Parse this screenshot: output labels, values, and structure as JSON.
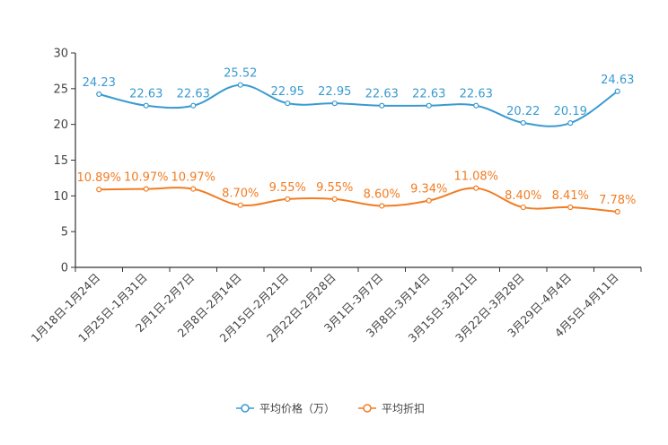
{
  "chart_data": {
    "type": "line",
    "title": "",
    "xlabel": "",
    "ylabel": "",
    "ylim": [
      0,
      30
    ],
    "yticks": [
      0,
      5,
      10,
      15,
      20,
      25,
      30
    ],
    "grid": false,
    "legend_position": "bottom",
    "categories": [
      "1月18日-1月24日",
      "1月25日-1月31日",
      "2月1日-2月7日",
      "2月8日-2月14日",
      "2月15日-2月21日",
      "2月22日-2月28日",
      "3月1日-3月7日",
      "3月8日-3月14日",
      "3月15日-3月21日",
      "3月22日-3月28日",
      "3月29日-4月4日",
      "4月5日-4月11日"
    ],
    "series": [
      {
        "name": "平均价格（万）",
        "color": "#3a9ad0",
        "values": [
          24.23,
          22.63,
          22.63,
          25.52,
          22.95,
          22.95,
          22.63,
          22.63,
          22.63,
          20.22,
          20.19,
          24.63
        ],
        "labels": [
          "24.23",
          "22.63",
          "22.63",
          "25.52",
          "22.95",
          "22.95",
          "22.63",
          "22.63",
          "22.63",
          "20.22",
          "20.19",
          "24.63"
        ]
      },
      {
        "name": "平均折扣",
        "color": "#f27c22",
        "values": [
          10.89,
          10.97,
          10.97,
          8.7,
          9.55,
          9.55,
          8.6,
          9.34,
          11.08,
          8.4,
          8.41,
          7.78
        ],
        "labels": [
          "10.89%",
          "10.97%",
          "10.97%",
          "8.70%",
          "9.55%",
          "9.55%",
          "8.60%",
          "9.34%",
          "11.08%",
          "8.40%",
          "8.41%",
          "7.78%"
        ]
      }
    ]
  }
}
